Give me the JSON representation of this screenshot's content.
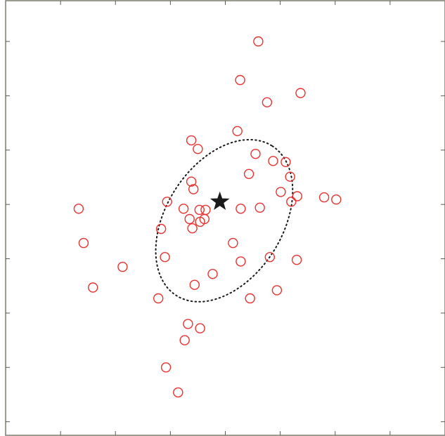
{
  "chart_data": {
    "type": "scatter",
    "title": "",
    "xlabel": "",
    "ylabel": "",
    "xlim": [
      0,
      8
    ],
    "ylim": [
      0,
      8
    ],
    "xticks": [
      1,
      2,
      3,
      4,
      5,
      6,
      7
    ],
    "yticks": [
      0.25,
      1.25,
      2.25,
      3.25,
      4.25,
      5.25,
      6.25,
      7.25
    ],
    "grid": false,
    "legend": "none",
    "series": [
      {
        "marker": "circle",
        "color": "#e8322e",
        "points": [
          [
            4.6,
            7.25
          ],
          [
            4.27,
            6.54
          ],
          [
            4.76,
            6.13
          ],
          [
            5.37,
            6.3
          ],
          [
            4.22,
            5.6
          ],
          [
            3.38,
            5.43
          ],
          [
            3.5,
            5.27
          ],
          [
            4.55,
            5.18
          ],
          [
            4.87,
            5.05
          ],
          [
            5.1,
            5.03
          ],
          [
            5.18,
            4.76
          ],
          [
            4.43,
            4.81
          ],
          [
            3.38,
            4.67
          ],
          [
            3.42,
            4.53
          ],
          [
            5.01,
            4.48
          ],
          [
            5.31,
            4.4
          ],
          [
            5.8,
            4.38
          ],
          [
            5.2,
            4.3
          ],
          [
            6.02,
            4.34
          ],
          [
            2.94,
            4.3
          ],
          [
            3.24,
            4.17
          ],
          [
            3.53,
            4.15
          ],
          [
            3.64,
            4.15
          ],
          [
            4.28,
            4.17
          ],
          [
            4.63,
            4.19
          ],
          [
            1.33,
            4.17
          ],
          [
            3.35,
            3.98
          ],
          [
            3.62,
            3.98
          ],
          [
            3.54,
            3.93
          ],
          [
            3.4,
            3.81
          ],
          [
            2.83,
            3.8
          ],
          [
            1.42,
            3.54
          ],
          [
            4.14,
            3.54
          ],
          [
            2.9,
            3.28
          ],
          [
            4.81,
            3.28
          ],
          [
            5.3,
            3.23
          ],
          [
            4.28,
            3.2
          ],
          [
            2.13,
            3.1
          ],
          [
            3.77,
            2.97
          ],
          [
            3.44,
            2.77
          ],
          [
            1.59,
            2.72
          ],
          [
            4.94,
            2.67
          ],
          [
            4.45,
            2.52
          ],
          [
            2.78,
            2.52
          ],
          [
            3.32,
            2.05
          ],
          [
            3.54,
            1.97
          ],
          [
            3.26,
            1.75
          ],
          [
            2.92,
            1.25
          ],
          [
            3.14,
            0.79
          ]
        ]
      }
    ],
    "highlight_point": {
      "marker": "star",
      "color": "#1a1a1a",
      "x": 3.9,
      "y": 4.3
    },
    "ellipse": {
      "style": "dotted",
      "color": "#1a1a1a",
      "center": [
        3.98,
        3.95
      ],
      "semi_major": 1.63,
      "semi_minor": 1.06,
      "angle_deg": 58
    }
  }
}
